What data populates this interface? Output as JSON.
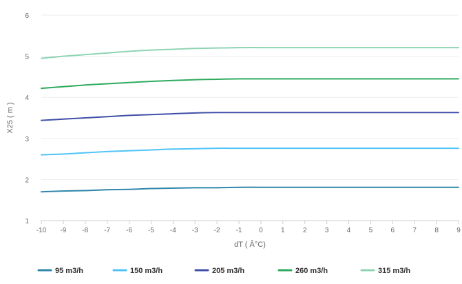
{
  "chart_data": {
    "type": "line",
    "title": "",
    "xlabel": "dT ( Â°C)",
    "ylabel": "X25 ( m )",
    "xlim": [
      -10,
      9
    ],
    "ylim": [
      1,
      6
    ],
    "x_ticks": [
      -10,
      -9,
      -8,
      -7,
      -6,
      -5,
      -4,
      -3,
      -2,
      -1,
      0,
      1,
      2,
      3,
      4,
      5,
      6,
      7,
      8,
      9
    ],
    "y_ticks": [
      1,
      2,
      3,
      4,
      5,
      6
    ],
    "grid": "horizontal",
    "legend_position": "bottom",
    "x": [
      -10,
      -9,
      -8,
      -7,
      -6,
      -5,
      -4,
      -3,
      -2,
      -1,
      0,
      1,
      2,
      3,
      4,
      5,
      6,
      7,
      8,
      9
    ],
    "series": [
      {
        "name": "95 m3/h",
        "color": "#2e86ab",
        "values": [
          1.7,
          1.72,
          1.73,
          1.75,
          1.76,
          1.78,
          1.79,
          1.8,
          1.8,
          1.81,
          1.81,
          1.81,
          1.81,
          1.81,
          1.81,
          1.81,
          1.81,
          1.81,
          1.81,
          1.81
        ]
      },
      {
        "name": "150 m3/h",
        "color": "#4fc3f7",
        "values": [
          2.6,
          2.62,
          2.65,
          2.68,
          2.7,
          2.72,
          2.74,
          2.75,
          2.76,
          2.76,
          2.76,
          2.76,
          2.76,
          2.76,
          2.76,
          2.76,
          2.76,
          2.76,
          2.76,
          2.76
        ]
      },
      {
        "name": "205 m3/h",
        "color": "#3f4fa8",
        "values": [
          3.44,
          3.47,
          3.5,
          3.53,
          3.56,
          3.58,
          3.6,
          3.62,
          3.63,
          3.63,
          3.63,
          3.63,
          3.63,
          3.63,
          3.63,
          3.63,
          3.63,
          3.63,
          3.63,
          3.63
        ]
      },
      {
        "name": "260 m3/h",
        "color": "#2eaa5c",
        "values": [
          4.22,
          4.26,
          4.3,
          4.33,
          4.36,
          4.39,
          4.41,
          4.43,
          4.44,
          4.45,
          4.45,
          4.45,
          4.45,
          4.45,
          4.45,
          4.45,
          4.45,
          4.45,
          4.45,
          4.45
        ]
      },
      {
        "name": "315 m3/h",
        "color": "#8fd3b4",
        "values": [
          4.95,
          5.0,
          5.04,
          5.08,
          5.12,
          5.15,
          5.17,
          5.19,
          5.2,
          5.21,
          5.21,
          5.21,
          5.21,
          5.21,
          5.21,
          5.21,
          5.21,
          5.21,
          5.21,
          5.21
        ]
      }
    ]
  }
}
